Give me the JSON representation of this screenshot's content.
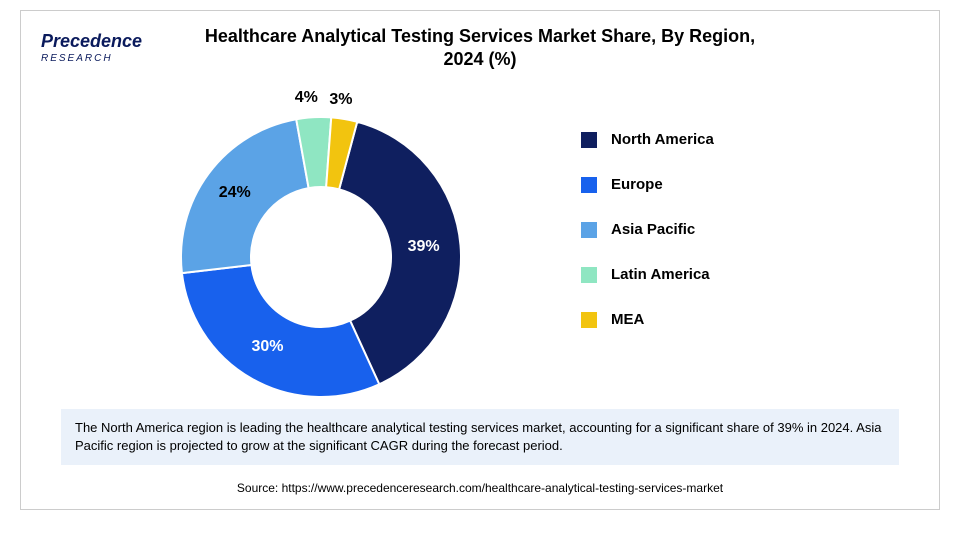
{
  "logo": {
    "text": "Precedence",
    "sub": "RESEARCH",
    "color": "#0a1a5c"
  },
  "title_line1": "Healthcare Analytical Testing Services Market Share, By Region,",
  "title_line2": "2024 (%)",
  "chart": {
    "type": "donut",
    "inner_radius": 70,
    "outer_radius": 140,
    "background_color": "#ffffff",
    "label_fontsize": 16,
    "label_fontweight": "bold",
    "segments": [
      {
        "name": "North America",
        "value": 39,
        "label": "39%",
        "color": "#0f1f5f"
      },
      {
        "name": "Europe",
        "value": 30,
        "label": "30%",
        "color": "#1861ed"
      },
      {
        "name": "Asia Pacific",
        "value": 24,
        "label": "24%",
        "color": "#5ba3e6"
      },
      {
        "name": "Latin America",
        "value": 4,
        "label": "4%",
        "color": "#8fe6c2"
      },
      {
        "name": "MEA",
        "value": 3,
        "label": "3%",
        "color": "#f2c40f"
      }
    ]
  },
  "legend_fontsize": 15,
  "caption": "The North America region is leading the healthcare analytical testing services market, accounting for a significant share of 39% in 2024. Asia Pacific region is projected to grow at the significant CAGR during the forecast period.",
  "caption_bg": "#eaf1fa",
  "source": "Source: https://www.precedenceresearch.com/healthcare-analytical-testing-services-market"
}
